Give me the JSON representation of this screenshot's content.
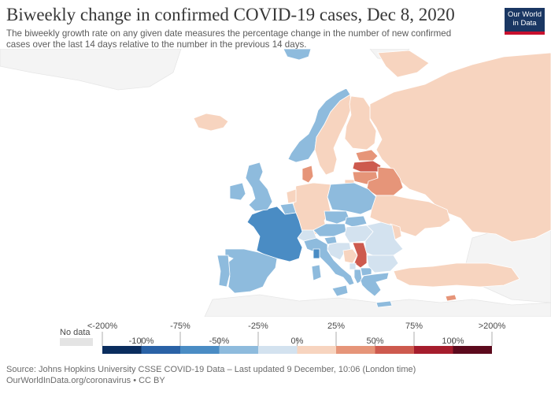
{
  "header": {
    "title": "Biweekly change in confirmed COVID-19 cases, Dec 8, 2020",
    "subtitle_line1": "The biweekly growth rate on any given date measures the percentage change in the number of new confirmed",
    "subtitle_line2": "cases over the last 14 days relative to the number in the previous 14 days.",
    "logo_line1": "Our World",
    "logo_line2": "in Data"
  },
  "colors": {
    "no_data": "#e4e4e4",
    "bins": [
      "#0a2d5e",
      "#2a62a6",
      "#4a8cc4",
      "#8ebbdd",
      "#d3e2ef",
      "#f7d4bf",
      "#e69579",
      "#cd5a4e",
      "#a51d2d",
      "#5c0a1d"
    ],
    "background_land": "#f2f2f2"
  },
  "legend": {
    "no_data_label": "No data",
    "top_labels": [
      "<-200%",
      "-75%",
      "-25%",
      "25%",
      "75%",
      ">200%"
    ],
    "bottom_labels": [
      "-100%",
      "-50%",
      "0%",
      "50%",
      "100%"
    ]
  },
  "countries": [
    {
      "name": "Russia",
      "bin": 5
    },
    {
      "name": "Finland",
      "bin": 5
    },
    {
      "name": "Sweden",
      "bin": 5
    },
    {
      "name": "Norway",
      "bin": 3
    },
    {
      "name": "Iceland",
      "bin": 5
    },
    {
      "name": "Estonia",
      "bin": 6
    },
    {
      "name": "Latvia",
      "bin": 7
    },
    {
      "name": "Lithuania",
      "bin": 6
    },
    {
      "name": "Belarus",
      "bin": 6
    },
    {
      "name": "Denmark",
      "bin": 6
    },
    {
      "name": "Poland",
      "bin": 3
    },
    {
      "name": "Germany",
      "bin": 5
    },
    {
      "name": "Netherlands",
      "bin": 5
    },
    {
      "name": "Belgium",
      "bin": 3
    },
    {
      "name": "United Kingdom",
      "bin": 3
    },
    {
      "name": "Ireland",
      "bin": 3
    },
    {
      "name": "France",
      "bin": 2
    },
    {
      "name": "Spain",
      "bin": 3
    },
    {
      "name": "Portugal",
      "bin": 3
    },
    {
      "name": "Switzerland",
      "bin": 4
    },
    {
      "name": "Austria",
      "bin": 3
    },
    {
      "name": "Czechia",
      "bin": 3
    },
    {
      "name": "Slovakia",
      "bin": 3
    },
    {
      "name": "Hungary",
      "bin": 4
    },
    {
      "name": "Ukraine",
      "bin": 5
    },
    {
      "name": "Moldova",
      "bin": 5
    },
    {
      "name": "Romania",
      "bin": 4
    },
    {
      "name": "Italy",
      "bin": 3
    },
    {
      "name": "Slovenia",
      "bin": 3
    },
    {
      "name": "Croatia",
      "bin": 4
    },
    {
      "name": "Bosnia and Herzegovina",
      "bin": 5
    },
    {
      "name": "Serbia",
      "bin": 7
    },
    {
      "name": "Montenegro",
      "bin": 4
    },
    {
      "name": "Albania",
      "bin": 3
    },
    {
      "name": "North Macedonia",
      "bin": 3
    },
    {
      "name": "Bulgaria",
      "bin": 4
    },
    {
      "name": "Greece",
      "bin": 3
    },
    {
      "name": "Turkey",
      "bin": 5
    },
    {
      "name": "Cyprus",
      "bin": 6
    },
    {
      "name": "Sardinia",
      "bin": 3
    },
    {
      "name": "Corsica",
      "bin": 2
    },
    {
      "name": "Sicily",
      "bin": 3
    },
    {
      "name": "Crete",
      "bin": 3
    },
    {
      "name": "Svalbard",
      "bin": 3
    },
    {
      "name": "Kaliningrad",
      "bin": 5
    },
    {
      "name": "Novaya Zemlya",
      "bin": 5
    }
  ],
  "source": {
    "line1": "Source: Johns Hopkins University CSSE COVID-19 Data – Last updated 9 December, 10:06 (London time)",
    "line2": "OurWorldInData.org/coronavirus • CC BY"
  }
}
